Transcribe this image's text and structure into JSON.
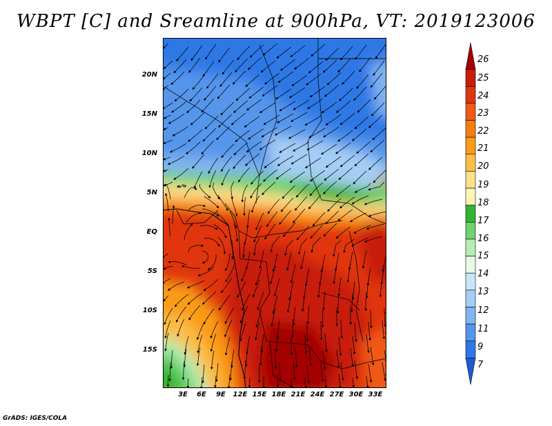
{
  "title": "WBPT [C] and Sreamline at 900hPa, VT: 2019123006",
  "footer": "GrADS: IGES/COLA",
  "axes": {
    "lat_labels": [
      "20N",
      "15N",
      "10N",
      "5N",
      "EQ",
      "5S",
      "10S",
      "15S"
    ],
    "lon_labels": [
      "3E",
      "6E",
      "9E",
      "12E",
      "15E",
      "18E",
      "21E",
      "24E",
      "27E",
      "30E",
      "33E"
    ]
  },
  "colorbar": {
    "labels": [
      "26",
      "25",
      "24",
      "23",
      "22",
      "21",
      "20",
      "19",
      "18",
      "17",
      "16",
      "15",
      "14",
      "13",
      "12",
      "11",
      "9",
      "7"
    ],
    "colors": [
      "#a50000",
      "#c81e0a",
      "#e0360f",
      "#f05a14",
      "#f57d0f",
      "#fa9b19",
      "#fbbe46",
      "#fde08c",
      "#fff5b4",
      "#32b432",
      "#6ed26e",
      "#b4eeb4",
      "#e6fae6",
      "#c8e6fa",
      "#a5cdf5",
      "#82b4f0",
      "#5596eb",
      "#2d78e6",
      "#1e5ad2"
    ]
  }
}
